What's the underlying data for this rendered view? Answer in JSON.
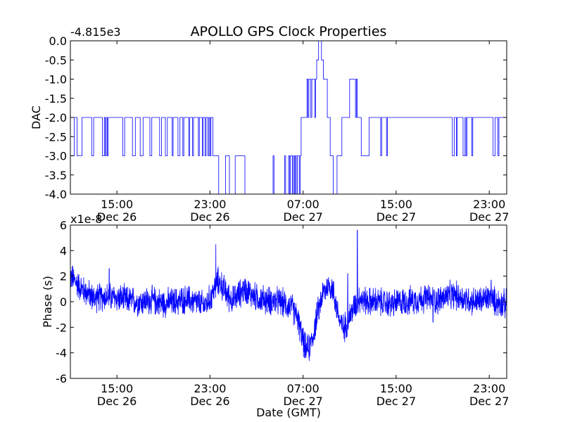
{
  "title": "APOLLO GPS Clock Properties",
  "colors": {
    "line": "#0000ff",
    "axes": "#000000",
    "background": "#ffffff"
  },
  "chart_data": [
    {
      "type": "line",
      "ylabel": "DAC",
      "xlabel": "",
      "offset_text": "-4.815e3",
      "ylim": [
        -4.0,
        0.0
      ],
      "xlim": [
        "2013-12-26T11:00",
        "2013-12-28T00:30"
      ],
      "grid": false,
      "yticks": [
        "0.0",
        "-0.5",
        "-1.0",
        "-1.5",
        "-2.0",
        "-2.5",
        "-3.0",
        "-3.5",
        "-4.0"
      ],
      "xticks": [
        {
          "time": "2013-12-26T15:00",
          "line1": "15:00",
          "line2": "Dec 26"
        },
        {
          "time": "2013-12-26T23:00",
          "line1": "23:00",
          "line2": "Dec 26"
        },
        {
          "time": "2013-12-27T07:00",
          "line1": "07:00",
          "line2": "Dec 27"
        },
        {
          "time": "2013-12-27T15:00",
          "line1": "15:00",
          "line2": "Dec 27"
        },
        {
          "time": "2013-12-27T23:00",
          "line1": "23:00",
          "line2": "Dec 27"
        }
      ],
      "series": [
        {
          "color": "#0000ff",
          "points": [
            [
              "2013-12-26T11:00",
              -3
            ],
            [
              "2013-12-26T11:20",
              -2
            ],
            [
              "2013-12-26T11:35",
              -3
            ],
            [
              "2013-12-26T12:00",
              -2
            ],
            [
              "2013-12-26T12:50",
              -3
            ],
            [
              "2013-12-26T13:00",
              -2
            ],
            [
              "2013-12-26T13:45",
              -3
            ],
            [
              "2013-12-26T13:55",
              -2
            ],
            [
              "2013-12-26T14:00",
              -3
            ],
            [
              "2013-12-26T14:05",
              -2
            ],
            [
              "2013-12-26T14:10",
              -3
            ],
            [
              "2013-12-26T14:15",
              -2
            ],
            [
              "2013-12-26T15:30",
              -3
            ],
            [
              "2013-12-26T15:40",
              -2
            ],
            [
              "2013-12-26T16:20",
              -3
            ],
            [
              "2013-12-26T16:35",
              -2
            ],
            [
              "2013-12-26T17:00",
              -3
            ],
            [
              "2013-12-26T17:15",
              -2
            ],
            [
              "2013-12-26T17:50",
              -3
            ],
            [
              "2013-12-26T18:00",
              -2
            ],
            [
              "2013-12-26T18:40",
              -3
            ],
            [
              "2013-12-26T18:50",
              -2
            ],
            [
              "2013-12-26T19:10",
              -3
            ],
            [
              "2013-12-26T19:20",
              -2
            ],
            [
              "2013-12-26T19:45",
              -3
            ],
            [
              "2013-12-26T19:50",
              -2
            ],
            [
              "2013-12-26T20:15",
              -3
            ],
            [
              "2013-12-26T20:25",
              -2
            ],
            [
              "2013-12-26T20:40",
              -3
            ],
            [
              "2013-12-26T20:45",
              -2
            ],
            [
              "2013-12-26T21:10",
              -3
            ],
            [
              "2013-12-26T21:15",
              -2
            ],
            [
              "2013-12-26T21:30",
              -3
            ],
            [
              "2013-12-26T21:35",
              -2
            ],
            [
              "2013-12-26T22:00",
              -3
            ],
            [
              "2013-12-26T22:05",
              -2
            ],
            [
              "2013-12-26T22:20",
              -3
            ],
            [
              "2013-12-26T22:25",
              -2
            ],
            [
              "2013-12-26T22:35",
              -3
            ],
            [
              "2013-12-26T22:40",
              -2
            ],
            [
              "2013-12-26T22:50",
              -3
            ],
            [
              "2013-12-26T22:55",
              -2
            ],
            [
              "2013-12-26T23:00",
              -3
            ],
            [
              "2013-12-26T23:05",
              -2
            ],
            [
              "2013-12-26T23:15",
              -3
            ],
            [
              "2013-12-26T23:30",
              -3
            ],
            [
              "2013-12-26T23:45",
              -4
            ],
            [
              "2013-12-27T00:05",
              -4
            ],
            [
              "2013-12-27T00:20",
              -3
            ],
            [
              "2013-12-27T00:40",
              -4
            ],
            [
              "2013-12-27T01:00",
              -4
            ],
            [
              "2013-12-27T01:10",
              -3
            ],
            [
              "2013-12-27T01:50",
              -3
            ],
            [
              "2013-12-27T02:00",
              -4
            ],
            [
              "2013-12-27T04:20",
              -4
            ],
            [
              "2013-12-27T04:25",
              -3
            ],
            [
              "2013-12-27T04:30",
              -4
            ],
            [
              "2013-12-27T05:20",
              -4
            ],
            [
              "2013-12-27T05:25",
              -3
            ],
            [
              "2013-12-27T05:30",
              -4
            ],
            [
              "2013-12-27T05:45",
              -3
            ],
            [
              "2013-12-27T05:50",
              -4
            ],
            [
              "2013-12-27T05:55",
              -3
            ],
            [
              "2013-12-27T06:05",
              -4
            ],
            [
              "2013-12-27T06:10",
              -3
            ],
            [
              "2013-12-27T06:15",
              -4
            ],
            [
              "2013-12-27T06:20",
              -3
            ],
            [
              "2013-12-27T06:25",
              -4
            ],
            [
              "2013-12-27T06:30",
              -3
            ],
            [
              "2013-12-27T06:40",
              -4
            ],
            [
              "2013-12-27T06:45",
              -3
            ],
            [
              "2013-12-27T06:50",
              -2
            ],
            [
              "2013-12-27T07:20",
              -1
            ],
            [
              "2013-12-27T07:25",
              -2
            ],
            [
              "2013-12-27T07:30",
              -1
            ],
            [
              "2013-12-27T07:40",
              -2
            ],
            [
              "2013-12-27T07:45",
              -1
            ],
            [
              "2013-12-27T07:55",
              -1
            ],
            [
              "2013-12-27T08:00",
              -2
            ],
            [
              "2013-12-27T08:05",
              -1
            ],
            [
              "2013-12-27T08:10",
              -0.5
            ],
            [
              "2013-12-27T08:20",
              0
            ],
            [
              "2013-12-27T08:35",
              -0.5
            ],
            [
              "2013-12-27T08:45",
              -1
            ],
            [
              "2013-12-27T09:05",
              -2
            ],
            [
              "2013-12-27T09:20",
              -3
            ],
            [
              "2013-12-27T09:35",
              -4
            ],
            [
              "2013-12-27T09:55",
              -3
            ],
            [
              "2013-12-27T10:20",
              -2
            ],
            [
              "2013-12-27T11:00",
              -1
            ],
            [
              "2013-12-27T11:30",
              -2
            ],
            [
              "2013-12-27T11:35",
              -1
            ],
            [
              "2013-12-27T11:40",
              -2
            ],
            [
              "2013-12-27T12:00",
              -3
            ],
            [
              "2013-12-27T12:30",
              -3
            ],
            [
              "2013-12-27T12:40",
              -2
            ],
            [
              "2013-12-27T13:40",
              -3
            ],
            [
              "2013-12-27T13:45",
              -2
            ],
            [
              "2013-12-27T14:10",
              -3
            ],
            [
              "2013-12-27T14:15",
              -2
            ],
            [
              "2013-12-27T19:50",
              -3
            ],
            [
              "2013-12-27T20:00",
              -2
            ],
            [
              "2013-12-27T20:10",
              -3
            ],
            [
              "2013-12-27T20:15",
              -2
            ],
            [
              "2013-12-27T20:45",
              -3
            ],
            [
              "2013-12-27T20:55",
              -2
            ],
            [
              "2013-12-27T21:00",
              -3
            ],
            [
              "2013-12-27T21:05",
              -2
            ],
            [
              "2013-12-27T21:30",
              -3
            ],
            [
              "2013-12-27T21:35",
              -2
            ],
            [
              "2013-12-27T23:20",
              -3
            ],
            [
              "2013-12-27T23:30",
              -2
            ],
            [
              "2013-12-27T23:45",
              -3
            ],
            [
              "2013-12-27T23:50",
              -2
            ],
            [
              "2013-12-28T00:30",
              -2
            ]
          ]
        }
      ]
    },
    {
      "type": "line",
      "ylabel": "Phase (s)",
      "xlabel": "Date (GMT)",
      "offset_text": "x1e-8",
      "ylim": [
        -6,
        6
      ],
      "xlim": [
        "2013-12-26T11:00",
        "2013-12-28T00:30"
      ],
      "grid": false,
      "yticks": [
        "6",
        "4",
        "2",
        "0",
        "-2",
        "-4",
        "-6"
      ],
      "xticks": [
        {
          "time": "2013-12-26T15:00",
          "line1": "15:00",
          "line2": "Dec 26"
        },
        {
          "time": "2013-12-26T23:00",
          "line1": "23:00",
          "line2": "Dec 26"
        },
        {
          "time": "2013-12-27T07:00",
          "line1": "07:00",
          "line2": "Dec 27"
        },
        {
          "time": "2013-12-27T15:00",
          "line1": "15:00",
          "line2": "Dec 27"
        },
        {
          "time": "2013-12-27T23:00",
          "line1": "23:00",
          "line2": "Dec 27"
        }
      ],
      "series": [
        {
          "color": "#0000ff",
          "trend": [
            [
              "2013-12-26T11:00",
              2.0
            ],
            [
              "2013-12-26T11:30",
              1.5
            ],
            [
              "2013-12-26T12:00",
              1.0
            ],
            [
              "2013-12-26T13:00",
              0.3
            ],
            [
              "2013-12-26T14:00",
              0.4
            ],
            [
              "2013-12-26T15:00",
              0.3
            ],
            [
              "2013-12-26T16:00",
              0.1
            ],
            [
              "2013-12-26T17:00",
              0.0
            ],
            [
              "2013-12-26T18:00",
              0.1
            ],
            [
              "2013-12-26T19:00",
              -0.1
            ],
            [
              "2013-12-26T20:00",
              0.0
            ],
            [
              "2013-12-26T21:00",
              0.2
            ],
            [
              "2013-12-26T22:00",
              -0.1
            ],
            [
              "2013-12-26T22:30",
              -0.3
            ],
            [
              "2013-12-26T23:00",
              0.2
            ],
            [
              "2013-12-26T23:40",
              1.6
            ],
            [
              "2013-12-27T00:00",
              1.3
            ],
            [
              "2013-12-27T00:30",
              0.5
            ],
            [
              "2013-12-27T01:00",
              0.1
            ],
            [
              "2013-12-27T01:30",
              0.6
            ],
            [
              "2013-12-27T02:00",
              1.0
            ],
            [
              "2013-12-27T02:30",
              0.6
            ],
            [
              "2013-12-27T03:00",
              0.3
            ],
            [
              "2013-12-27T04:00",
              0.1
            ],
            [
              "2013-12-27T05:00",
              0.0
            ],
            [
              "2013-12-27T05:30",
              -0.2
            ],
            [
              "2013-12-27T06:00",
              -0.4
            ],
            [
              "2013-12-27T06:30",
              -1.2
            ],
            [
              "2013-12-27T06:50",
              -2.5
            ],
            [
              "2013-12-27T07:10",
              -3.6
            ],
            [
              "2013-12-27T07:30",
              -3.7
            ],
            [
              "2013-12-27T07:50",
              -2.8
            ],
            [
              "2013-12-27T08:10",
              -1.2
            ],
            [
              "2013-12-27T08:40",
              0.6
            ],
            [
              "2013-12-27T09:10",
              1.3
            ],
            [
              "2013-12-27T09:30",
              1.1
            ],
            [
              "2013-12-27T09:50",
              -0.2
            ],
            [
              "2013-12-27T10:10",
              -1.6
            ],
            [
              "2013-12-27T10:30",
              -2.1
            ],
            [
              "2013-12-27T10:50",
              -1.5
            ],
            [
              "2013-12-27T11:20",
              -0.5
            ],
            [
              "2013-12-27T11:50",
              0.3
            ],
            [
              "2013-12-27T12:30",
              0.0
            ],
            [
              "2013-12-27T13:30",
              0.0
            ],
            [
              "2013-12-27T14:30",
              -0.2
            ],
            [
              "2013-12-27T15:30",
              0.0
            ],
            [
              "2013-12-27T16:30",
              0.1
            ],
            [
              "2013-12-27T17:30",
              0.3
            ],
            [
              "2013-12-27T18:30",
              0.1
            ],
            [
              "2013-12-27T19:20",
              0.4
            ],
            [
              "2013-12-27T20:00",
              0.5
            ],
            [
              "2013-12-27T21:00",
              0.2
            ],
            [
              "2013-12-27T22:00",
              0.0
            ],
            [
              "2013-12-27T23:00",
              0.3
            ],
            [
              "2013-12-27T23:30",
              0.0
            ],
            [
              "2013-12-28T00:30",
              -0.2
            ]
          ],
          "noise_amplitude": 0.9,
          "spikes": [
            [
              "2013-12-26T14:20",
              2.6
            ],
            [
              "2013-12-26T23:30",
              4.5
            ],
            [
              "2013-12-27T07:10",
              -4.4
            ],
            [
              "2013-12-27T10:50",
              2.2
            ],
            [
              "2013-12-27T11:40",
              5.6
            ],
            [
              "2013-12-27T18:10",
              -1.6
            ],
            [
              "2013-12-27T23:10",
              1.7
            ]
          ]
        }
      ]
    }
  ]
}
